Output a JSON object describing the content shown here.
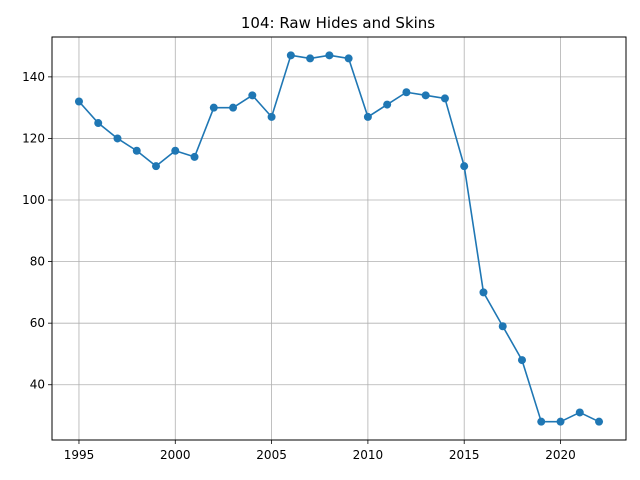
{
  "chart_data": {
    "type": "line",
    "title": "104: Raw Hides and Skins",
    "xlabel": "",
    "ylabel": "",
    "xlim": [
      1993.6,
      2023.4
    ],
    "ylim": [
      22.05,
      152.95
    ],
    "x_ticks": [
      1995,
      2000,
      2005,
      2010,
      2015,
      2020
    ],
    "y_ticks": [
      40,
      60,
      80,
      100,
      120,
      140
    ],
    "grid": true,
    "color": "#1f77b4",
    "marker": "circle",
    "series": [
      {
        "x": [
          1995,
          1996,
          1997,
          1998,
          1999,
          2000,
          2001,
          2002,
          2003,
          2004,
          2005,
          2006,
          2007,
          2008,
          2009,
          2010,
          2011,
          2012,
          2013,
          2014,
          2015,
          2016,
          2017,
          2018,
          2019,
          2020,
          2021,
          2022
        ],
        "values": [
          132,
          125,
          120,
          116,
          111,
          116,
          114,
          130,
          130,
          134,
          127,
          147,
          146,
          147,
          146,
          127,
          131,
          135,
          134,
          133,
          111,
          70,
          59,
          48,
          28,
          28,
          31,
          28
        ]
      }
    ]
  }
}
